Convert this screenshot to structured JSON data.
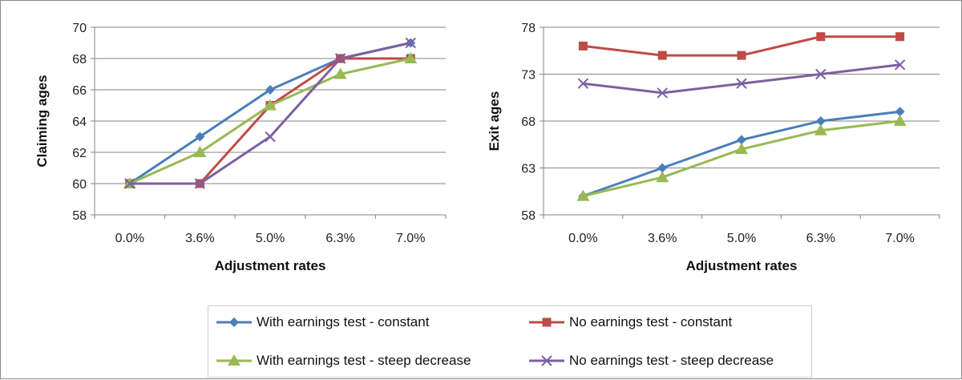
{
  "chart_data": [
    {
      "type": "line",
      "xlabel": "Adjustment rates",
      "ylabel": "Claiming ages",
      "categories": [
        "0.0%",
        "3.6%",
        "5.0%",
        "6.3%",
        "7.0%"
      ],
      "ylim": [
        58,
        70
      ],
      "yticks": [
        58,
        60,
        62,
        64,
        66,
        68,
        70
      ],
      "grid": true,
      "series": [
        {
          "name": "With earnings test - constant",
          "values": [
            60,
            63,
            66,
            68,
            69
          ],
          "color": "#4a7ebb",
          "marker": "diamond"
        },
        {
          "name": "No earnings test - constant",
          "values": [
            60,
            60,
            65,
            68,
            68
          ],
          "color": "#be4b48",
          "marker": "square"
        },
        {
          "name": "With earnings test - steep decrease",
          "values": [
            60,
            62,
            65,
            67,
            68
          ],
          "color": "#98b954",
          "marker": "triangle"
        },
        {
          "name": "No earnings test - steep decrease",
          "values": [
            60,
            60,
            63,
            68,
            69
          ],
          "color": "#7d60a0",
          "marker": "x"
        }
      ]
    },
    {
      "type": "line",
      "xlabel": "Adjustment rates",
      "ylabel": "Exit ages",
      "categories": [
        "0.0%",
        "3.6%",
        "5.0%",
        "6.3%",
        "7.0%"
      ],
      "ylim": [
        58,
        78
      ],
      "yticks": [
        58,
        63,
        68,
        73,
        78
      ],
      "grid": true,
      "series": [
        {
          "name": "With earnings test - constant",
          "values": [
            60,
            63,
            66,
            68,
            69
          ],
          "color": "#4a7ebb",
          "marker": "diamond"
        },
        {
          "name": "No earnings test - constant",
          "values": [
            76,
            75,
            75,
            77,
            77
          ],
          "color": "#be4b48",
          "marker": "square"
        },
        {
          "name": "With earnings test - steep decrease",
          "values": [
            60,
            62,
            65,
            67,
            68
          ],
          "color": "#98b954",
          "marker": "triangle"
        },
        {
          "name": "No earnings test - steep decrease",
          "values": [
            72,
            71,
            72,
            73,
            74
          ],
          "color": "#7d60a0",
          "marker": "x"
        }
      ]
    }
  ],
  "legend": {
    "placement": "bottom",
    "items": [
      {
        "label": "With earnings test - constant",
        "color": "#4a7ebb",
        "marker": "diamond"
      },
      {
        "label": "No earnings test - constant",
        "color": "#be4b48",
        "marker": "square"
      },
      {
        "label": "With earnings test - steep decrease",
        "color": "#98b954",
        "marker": "triangle"
      },
      {
        "label": "No earnings test - steep decrease",
        "color": "#7d60a0",
        "marker": "x"
      }
    ]
  }
}
